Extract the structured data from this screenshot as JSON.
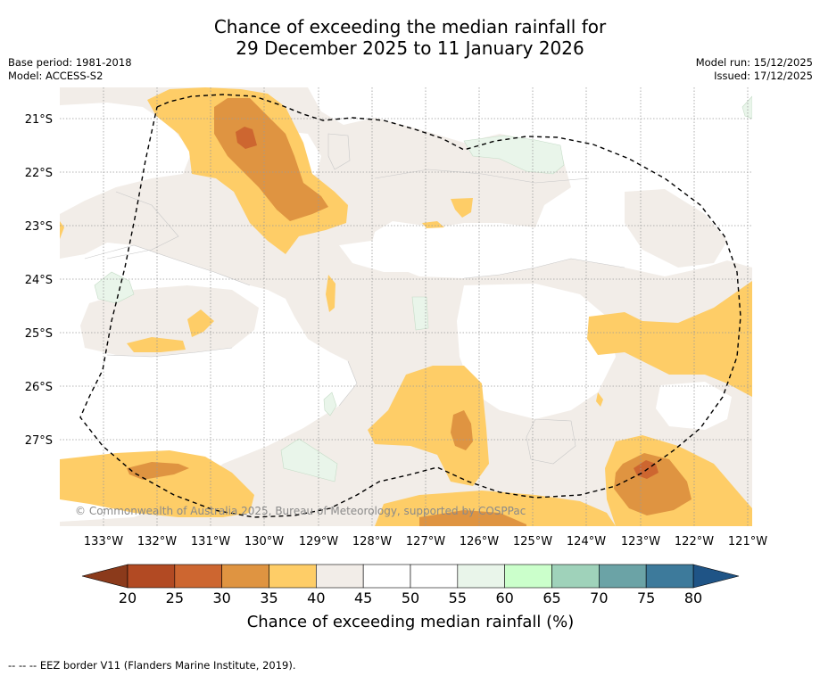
{
  "title": {
    "line1": "Chance of exceeding the median rainfall for",
    "line2": "29 December 2025 to 11 January 2026"
  },
  "meta": {
    "base_period": "Base period: 1981-2018",
    "model": "Model: ACCESS-S2",
    "model_run": "Model run: 15/12/2025",
    "issued": "Issued: 17/12/2025"
  },
  "map": {
    "latitudes": [
      "21°S",
      "22°S",
      "23°S",
      "24°S",
      "25°S",
      "26°S",
      "27°S"
    ],
    "longitudes": [
      "133°W",
      "132°W",
      "131°W",
      "130°W",
      "129°W",
      "128°W",
      "127°W",
      "126°W",
      "125°W",
      "124°W",
      "123°W",
      "122°W",
      "121°W"
    ],
    "copyright": "© Commonwealth of Australia 2025, Bureau of Meteorology, supported by COSPPac"
  },
  "colorbar": {
    "labels": [
      "20",
      "25",
      "30",
      "35",
      "40",
      "45",
      "50",
      "55",
      "60",
      "65",
      "70",
      "75",
      "80"
    ],
    "colors": [
      "#b24a23",
      "#cd6630",
      "#df9441",
      "#fecd67",
      "#f2ede8",
      "#ffffff",
      "#ffffff",
      "#e9f5ea",
      "#cbffcb",
      "#9fd2ba",
      "#6ba3a6",
      "#3d7a9b"
    ],
    "low_color": "#8b3a1b",
    "high_color": "#1f5486",
    "title": "Chance of exceeding median rainfall (%)"
  },
  "footer": "--  --  -- EEZ border V11 (Flanders Marine Institute, 2019)."
}
